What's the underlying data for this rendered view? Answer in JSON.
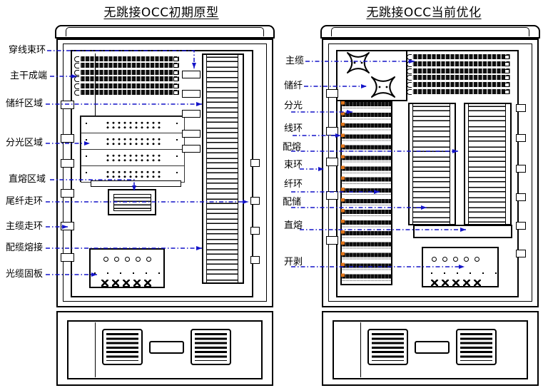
{
  "left_cabinet": {
    "title": "无跳接OCC初期原型",
    "labels": [
      "穿线束环",
      "主干成端",
      "储纤区域",
      "分光区域",
      "直熔区域",
      "尾纤走环",
      "主缆走环",
      "配缆熔接",
      "光缆固板"
    ]
  },
  "right_cabinet": {
    "title": "无跳接OCC当前优化",
    "labels": [
      "主缆",
      "储纤",
      "分光",
      "线环",
      "配熔",
      "束环",
      "纤环",
      "配储",
      "直熔",
      "开剥"
    ]
  },
  "colors": {
    "arrow_blue": "#1414c8",
    "line_black": "#000000",
    "tray_black": "#101010",
    "hinge_orange": "#e2761b"
  }
}
